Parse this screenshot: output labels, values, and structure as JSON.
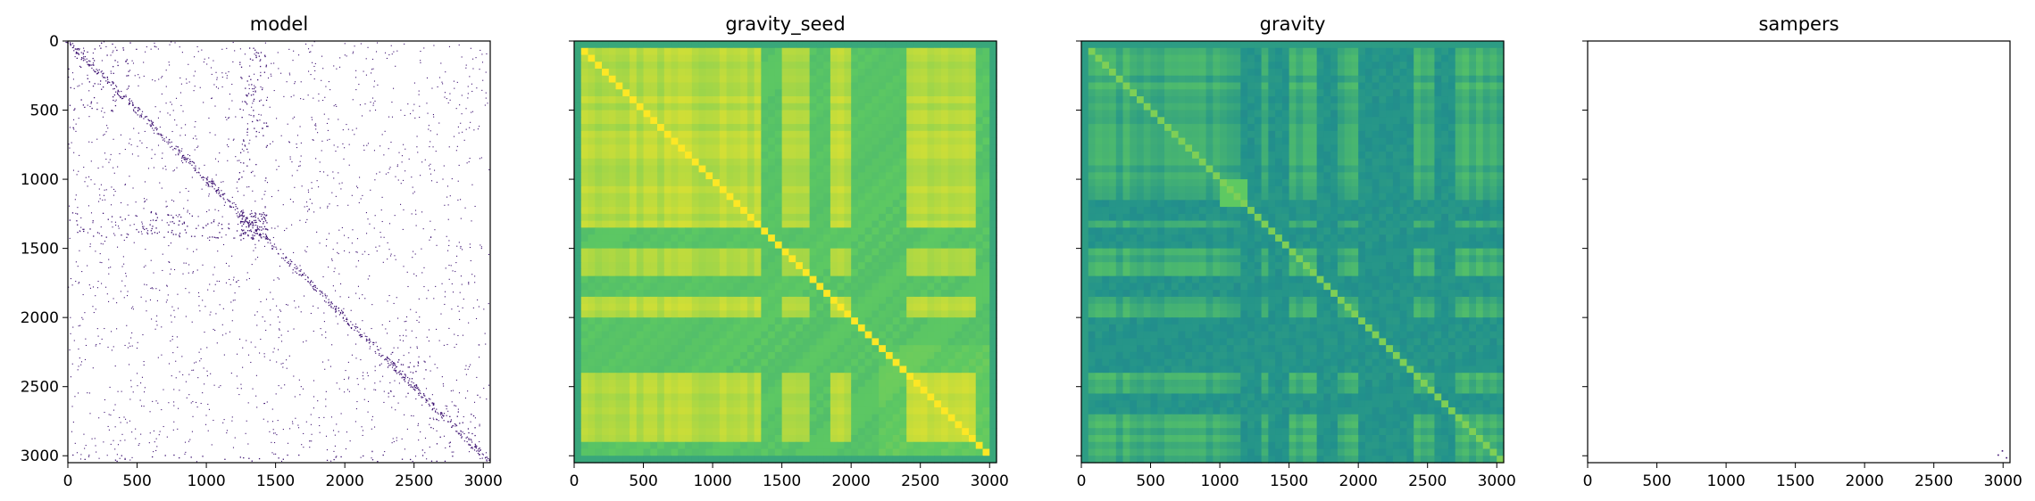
{
  "chart_data": [
    {
      "type": "heatmap",
      "title": "model",
      "description": "sparse adjacency matrix, dark purple dots on white",
      "pattern": "sparse",
      "colormap": [
        "#ffffff",
        "#3b0f70"
      ],
      "xlim": [
        0,
        3050
      ],
      "ylim": [
        3050,
        0
      ],
      "xticks": [
        0,
        500,
        1000,
        1500,
        2000,
        2500,
        3000
      ],
      "yticks": [
        0,
        500,
        1000,
        1500,
        2000,
        2500,
        3000
      ],
      "dense_blocks": [
        {
          "x": [
            1230,
            1440
          ],
          "y": [
            1230,
            1440
          ],
          "density": 0.85
        },
        {
          "x": [
            1230,
            1440
          ],
          "y": [
            0,
            500
          ],
          "density": 0.18
        },
        {
          "x": [
            0,
            1440
          ],
          "y": [
            1230,
            1420
          ],
          "density": 0.16
        },
        {
          "x": [
            0,
            500
          ],
          "y": [
            0,
            500
          ],
          "density": 0.1
        },
        {
          "x": [
            1230,
            1440
          ],
          "y": [
            520,
            1000
          ],
          "density": 0.12
        },
        {
          "x": [
            2300,
            2600
          ],
          "y": [
            2300,
            2600
          ],
          "density": 0.1
        },
        {
          "x": [
            2600,
            2950
          ],
          "y": [
            2600,
            2950
          ],
          "density": 0.08
        },
        {
          "x": [
            0,
            3000
          ],
          "y": [
            2990,
            3040
          ],
          "density": 0.1
        }
      ]
    },
    {
      "type": "heatmap",
      "title": "gravity_seed",
      "description": "dense viridis matrix, mostly yellow with green bands",
      "pattern": "gravity_seed",
      "colormap": [
        "#440154",
        "#3b528b",
        "#21918c",
        "#5ec962",
        "#fde725"
      ],
      "xlim": [
        0,
        3050
      ],
      "ylim": [
        3050,
        0
      ],
      "xticks": [
        0,
        500,
        1000,
        1500,
        2000,
        2500,
        3000
      ],
      "bands": [
        1420,
        1780,
        2080,
        2180,
        2230,
        2300,
        2950
      ]
    },
    {
      "type": "heatmap",
      "title": "gravity",
      "description": "dense viridis matrix, green with teal bands",
      "pattern": "gravity",
      "colormap": [
        "#440154",
        "#3b528b",
        "#21918c",
        "#5ec962",
        "#fde725"
      ],
      "xlim": [
        0,
        3050
      ],
      "ylim": [
        3050,
        0
      ],
      "xticks": [
        0,
        500,
        1000,
        1500,
        2000,
        2500,
        3000
      ],
      "bands": [
        1220,
        1420,
        1780,
        2080,
        2230,
        2300,
        2600
      ]
    },
    {
      "type": "heatmap",
      "title": "sampers",
      "description": "almost empty matrix, a couple of dots near bottom-right",
      "pattern": "empty",
      "colormap": [
        "#ffffff",
        "#3b0f70"
      ],
      "xlim": [
        0,
        3050
      ],
      "ylim": [
        3050,
        0
      ],
      "xticks": [
        0,
        500,
        1000,
        1500,
        2000,
        2500,
        3000
      ],
      "points": [
        {
          "x": 2960,
          "y": 2990
        },
        {
          "x": 2990,
          "y": 2960
        },
        {
          "x": 3020,
          "y": 3010
        }
      ]
    }
  ]
}
